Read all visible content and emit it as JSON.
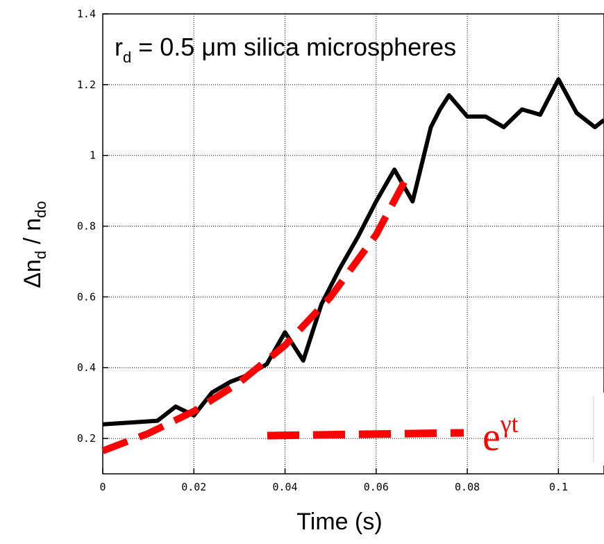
{
  "chart_data": {
    "type": "line",
    "title": "",
    "xlabel": "Time (s)",
    "ylabel_parts": {
      "base": "Δn",
      "sub1": "d",
      "slash": " / n",
      "sub2": "do"
    },
    "annotation": {
      "r": "r",
      "sub": "d",
      "rest": " = 0.5 μm  silica microspheres"
    },
    "xlim": [
      0,
      0.11
    ],
    "ylim": [
      0.1,
      1.4
    ],
    "xticks": [
      0,
      0.02,
      0.04,
      0.06,
      0.08,
      0.1
    ],
    "xtick_labels": [
      "0",
      "0.02",
      "0.04",
      "0.06",
      "0.08",
      "0.1"
    ],
    "yticks": [
      0.2,
      0.4,
      0.6,
      0.8,
      1.0,
      1.2,
      1.4
    ],
    "ytick_labels": [
      "0.2",
      "0.4",
      "0.6",
      "0.8",
      "1",
      "1.2",
      "1.4"
    ],
    "grid": true,
    "series": [
      {
        "color": "#000000",
        "style": "solid",
        "x": [
          0,
          0.012,
          0.016,
          0.02,
          0.024,
          0.028,
          0.032,
          0.036,
          0.04,
          0.044,
          0.048,
          0.052,
          0.056,
          0.06,
          0.064,
          0.068,
          0.072,
          0.074,
          0.076,
          0.08,
          0.084,
          0.088,
          0.092,
          0.096,
          0.1,
          0.104,
          0.108,
          0.11
        ],
        "y": [
          0.24,
          0.25,
          0.29,
          0.265,
          0.33,
          0.36,
          0.38,
          0.41,
          0.5,
          0.42,
          0.58,
          0.68,
          0.77,
          0.87,
          0.96,
          0.87,
          1.08,
          1.13,
          1.17,
          1.11,
          1.11,
          1.08,
          1.13,
          1.115,
          1.215,
          1.12,
          1.08,
          1.1
        ]
      },
      {
        "color": "#ff0000",
        "style": "dashed",
        "x": [
          0,
          0.01,
          0.02,
          0.03,
          0.04,
          0.05,
          0.06,
          0.067
        ],
        "y": [
          0.165,
          0.214,
          0.277,
          0.358,
          0.463,
          0.6,
          0.776,
          0.945
        ]
      }
    ],
    "legend": {
      "placement": "bottom-right",
      "label_base": "e",
      "label_sup": "γt",
      "color": "#ff0000"
    }
  }
}
